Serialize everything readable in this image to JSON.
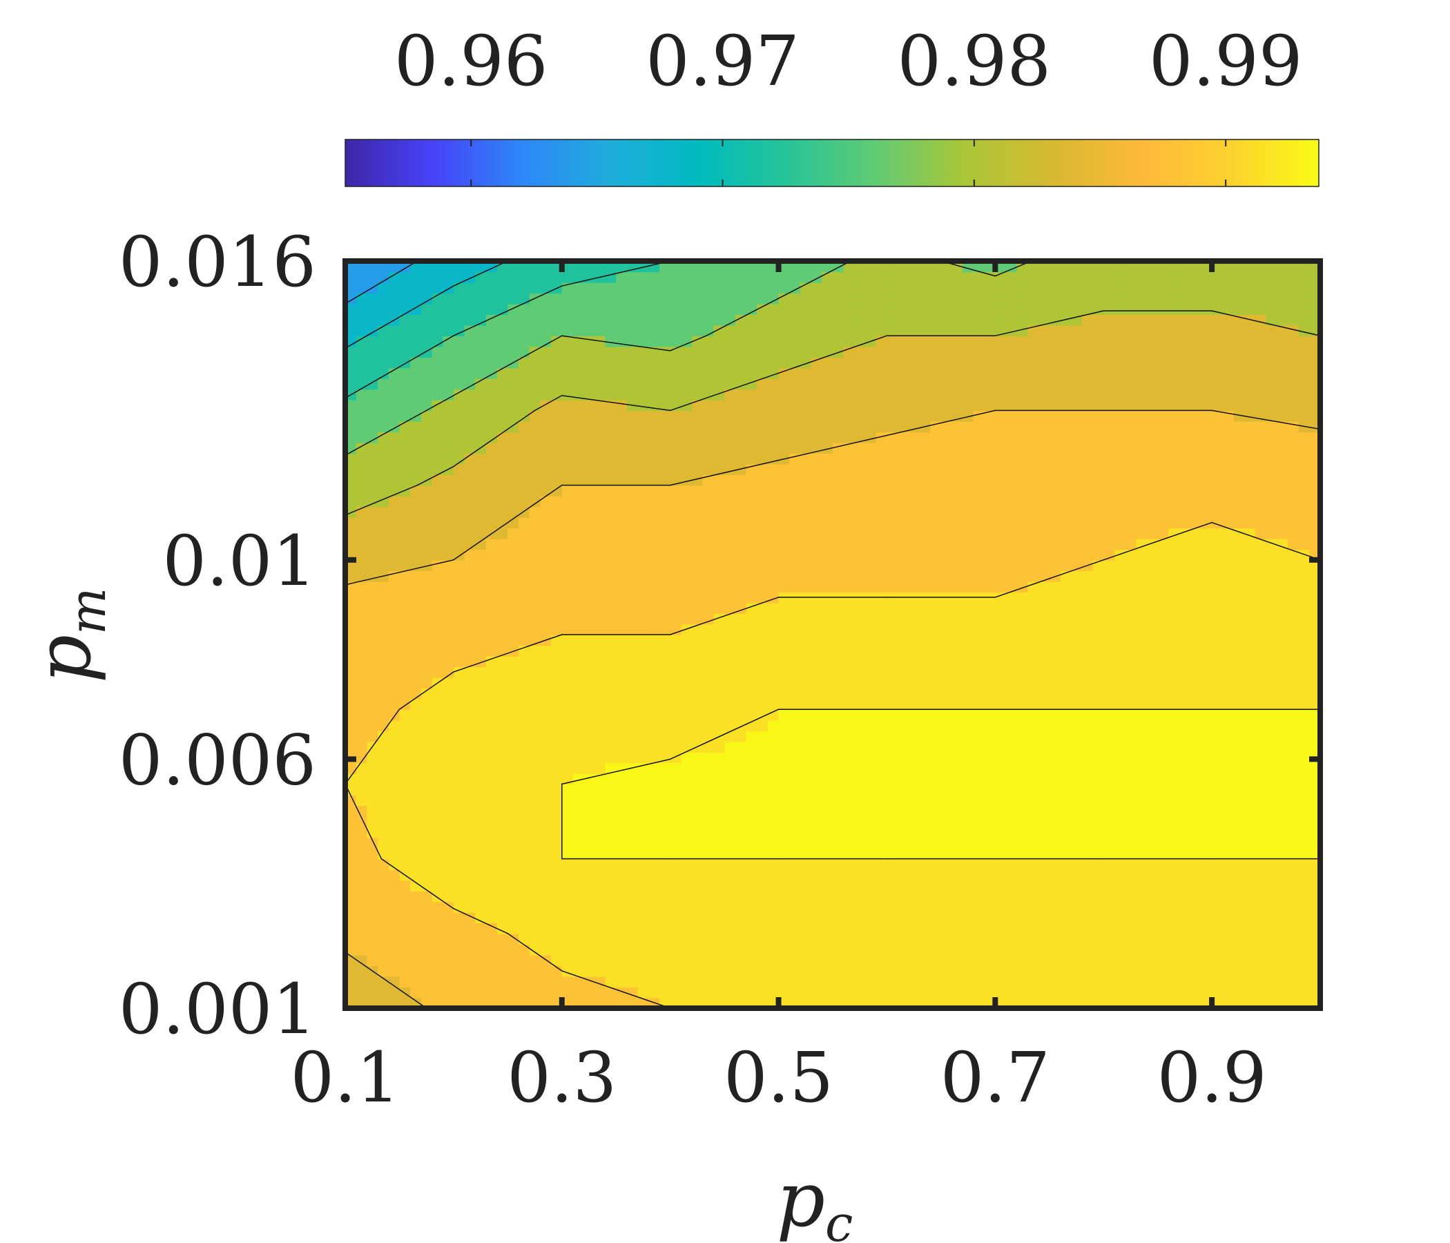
{
  "chart_data": {
    "type": "heatmap",
    "subtype": "filled-contour",
    "title": "",
    "xlabel": "p",
    "xlabel_sub": "c",
    "ylabel": "p",
    "ylabel_sub": "m",
    "x": [
      0.1,
      0.2,
      0.3,
      0.4,
      0.5,
      0.6,
      0.7,
      0.8,
      0.9,
      1.0
    ],
    "y": [
      0.001,
      0.0025,
      0.004,
      0.0055,
      0.007,
      0.0085,
      0.01,
      0.0115,
      0.013,
      0.0145,
      0.016
    ],
    "z": [
      [
        0.983,
        0.987,
        0.989,
        0.99,
        0.99,
        0.99,
        0.99,
        0.99,
        0.991,
        0.99
      ],
      [
        0.987,
        0.989,
        0.991,
        0.991,
        0.991,
        0.991,
        0.991,
        0.991,
        0.991,
        0.991
      ],
      [
        0.989,
        0.992,
        0.993,
        0.993,
        0.993,
        0.993,
        0.993,
        0.993,
        0.993,
        0.993
      ],
      [
        0.99,
        0.992,
        0.993,
        0.994,
        0.994,
        0.994,
        0.994,
        0.994,
        0.994,
        0.994
      ],
      [
        0.989,
        0.991,
        0.992,
        0.991,
        0.993,
        0.993,
        0.993,
        0.993,
        0.993,
        0.993
      ],
      [
        0.988,
        0.989,
        0.99,
        0.99,
        0.991,
        0.991,
        0.991,
        0.992,
        0.992,
        0.992
      ],
      [
        0.985,
        0.986,
        0.988,
        0.988,
        0.989,
        0.989,
        0.989,
        0.99,
        0.991,
        0.99
      ],
      [
        0.98,
        0.983,
        0.986,
        0.986,
        0.987,
        0.988,
        0.989,
        0.989,
        0.989,
        0.989
      ],
      [
        0.975,
        0.979,
        0.983,
        0.982,
        0.984,
        0.985,
        0.986,
        0.986,
        0.986,
        0.985
      ],
      [
        0.969,
        0.974,
        0.978,
        0.977,
        0.98,
        0.982,
        0.982,
        0.983,
        0.983,
        0.982
      ],
      [
        0.962,
        0.968,
        0.972,
        0.974,
        0.976,
        0.979,
        0.977,
        0.98,
        0.98,
        0.98
      ]
    ],
    "contour_levels": [
      0.962,
      0.966,
      0.97,
      0.974,
      0.978,
      0.982,
      0.986,
      0.99,
      0.993
    ],
    "xlim": [
      0.1,
      1.0
    ],
    "ylim": [
      0.001,
      0.016
    ],
    "xticks": [
      0.1,
      0.3,
      0.5,
      0.7,
      0.9
    ],
    "xtick_labels": [
      "0.1",
      "0.3",
      "0.5",
      "0.7",
      "0.9"
    ],
    "yticks": [
      0.001,
      0.006,
      0.01,
      0.016
    ],
    "ytick_labels": [
      "0.001",
      "0.006",
      "0.01",
      "0.016"
    ],
    "colorbar": {
      "placement": "top",
      "range": [
        0.955,
        0.9937
      ],
      "ticks": [
        0.96,
        0.97,
        0.98,
        0.99
      ],
      "tick_labels": [
        "0.96",
        "0.97",
        "0.98",
        "0.99"
      ],
      "colormap": [
        "#3e26a8",
        "#4743f8",
        "#2e87f8",
        "#1eadda",
        "#00bbbe",
        "#27c498",
        "#61cb73",
        "#aac637",
        "#d7b92f",
        "#feb93a",
        "#fcd22f",
        "#f9fb14"
      ]
    },
    "grid": false,
    "legend": "none"
  }
}
